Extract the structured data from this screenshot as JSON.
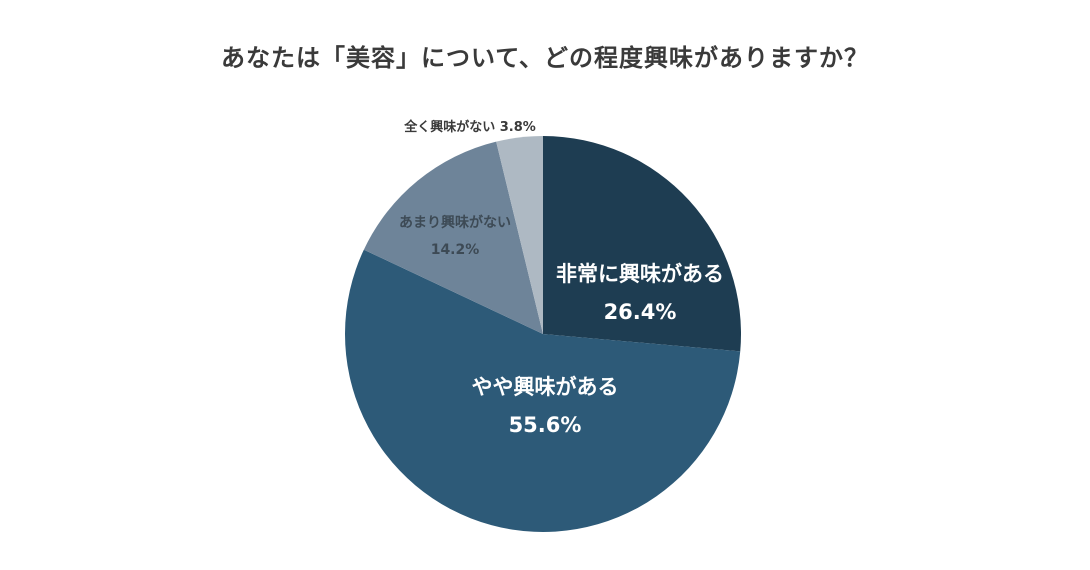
{
  "chart_data": {
    "type": "pie",
    "title": "あなたは「美容」について、どの程度興味がありますか？",
    "start_angle": "12 o'clock, clockwise",
    "slices": [
      {
        "label": "非常に興味がある",
        "value": 26.4,
        "value_label": "26.4%",
        "color": "#1E3D52"
      },
      {
        "label": "やや興味がある",
        "value": 55.6,
        "value_label": "55.6%",
        "color": "#2D5A78"
      },
      {
        "label": "あまり興味がない",
        "value": 14.2,
        "value_label": "14.2%",
        "color": "#6E8499"
      },
      {
        "label": "全く興味がない",
        "value": 3.8,
        "value_label": "3.8%",
        "color": "#AEB9C3"
      }
    ],
    "legend": "none (labels on slices)"
  },
  "labels": {
    "s0_name": "非常に興味がある",
    "s0_pct": "26.4%",
    "s1_name": "やや興味がある",
    "s1_pct": "55.6%",
    "s2_name": "あまり興味がない",
    "s2_pct": "14.2%",
    "s3_full": "全く興味がない 3.8%"
  }
}
